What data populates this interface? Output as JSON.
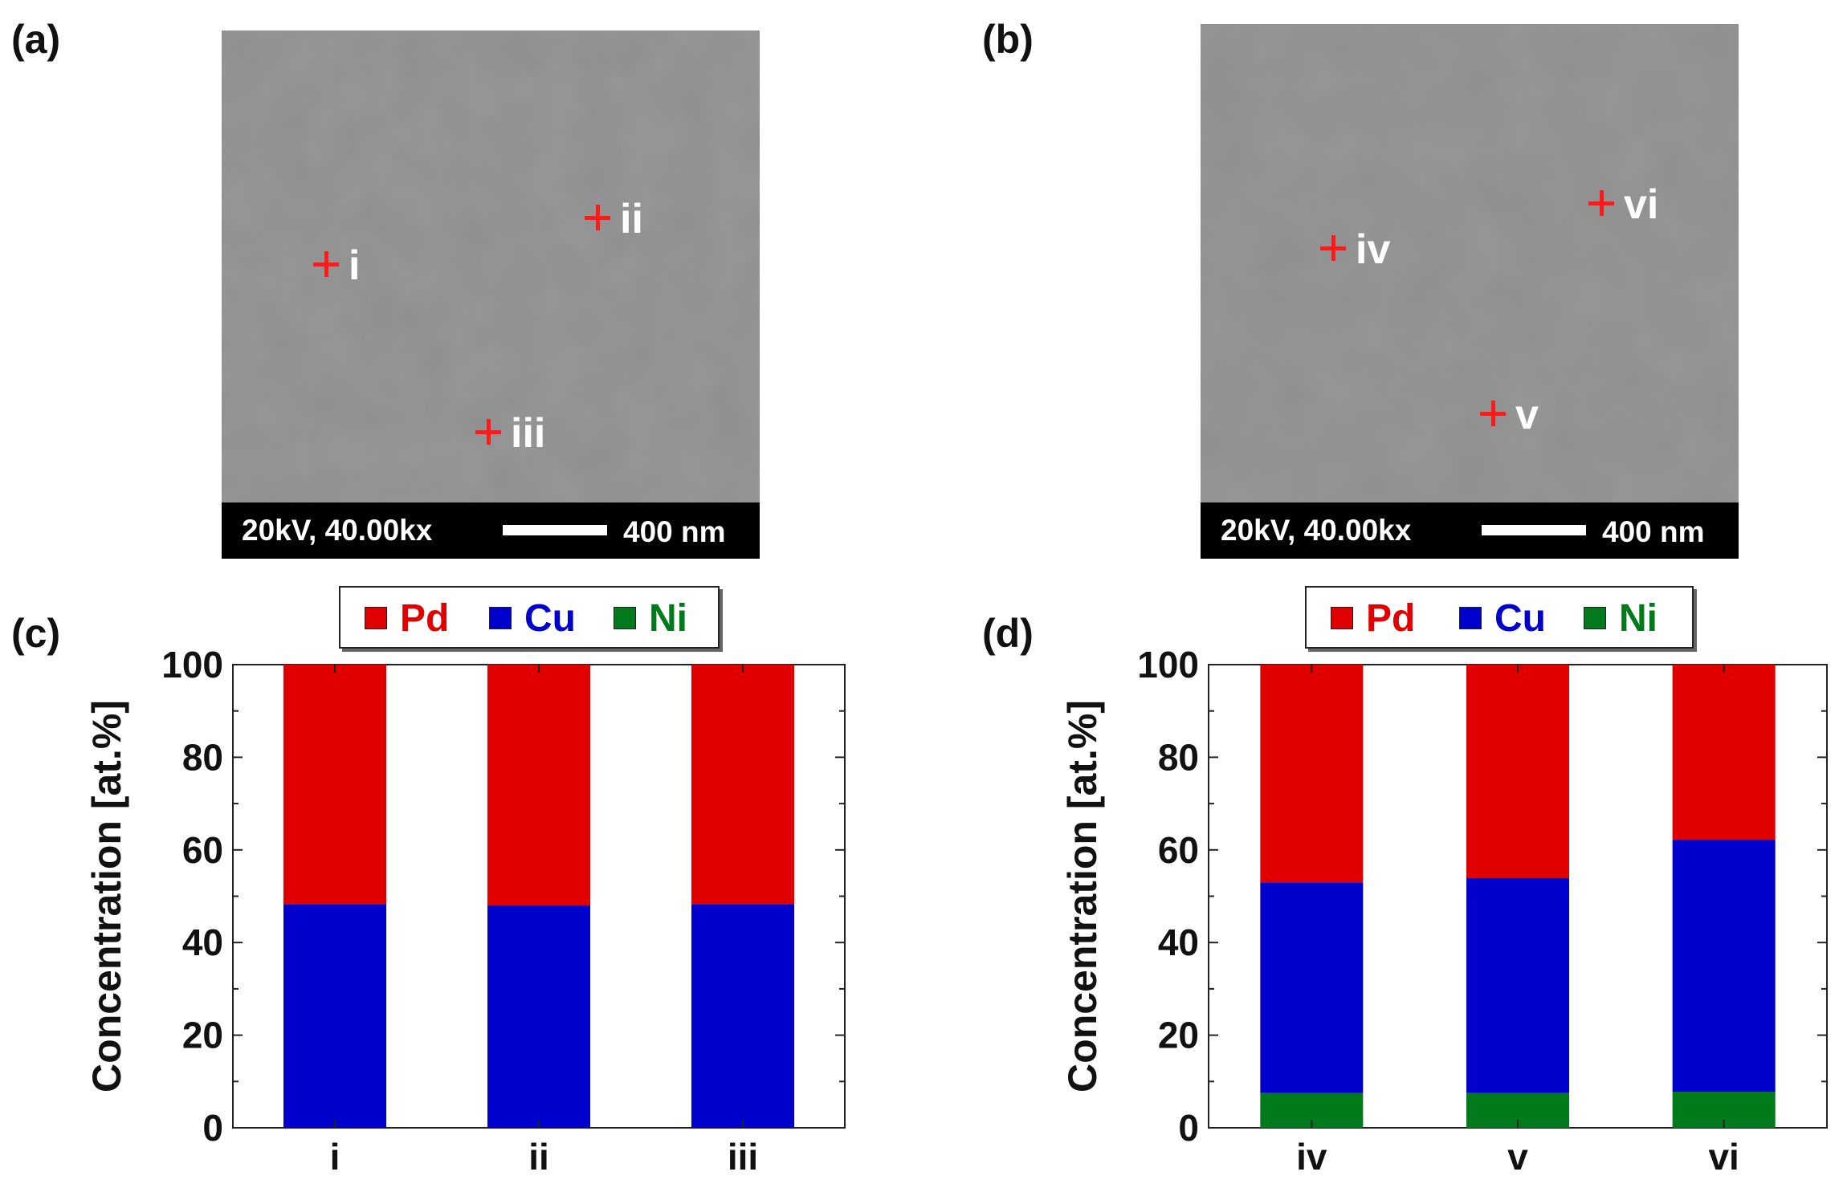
{
  "panels": {
    "a": {
      "label": "(a)",
      "sem_info": "20kV, 40.00kx",
      "scale_text": "400 nm",
      "markers": [
        "i",
        "ii",
        "iii"
      ]
    },
    "b": {
      "label": "(b)",
      "sem_info": "20kV, 40.00kx",
      "scale_text": "400 nm",
      "markers": [
        "iv",
        "vi",
        "v"
      ]
    },
    "c": {
      "label": "(c)"
    },
    "d": {
      "label": "(d)"
    }
  },
  "legend": {
    "items": [
      {
        "label": "Pd",
        "color": "#e00000"
      },
      {
        "label": "Cu",
        "color": "#0000cc"
      },
      {
        "label": "Ni",
        "color": "#007a1a"
      }
    ]
  },
  "chart_data": [
    {
      "type": "bar",
      "stacked": true,
      "panel": "(c)",
      "categories": [
        "i",
        "ii",
        "iii"
      ],
      "series": [
        {
          "name": "Ni",
          "color": "#007a1a",
          "values": [
            0,
            0,
            0
          ]
        },
        {
          "name": "Cu",
          "color": "#0000cc",
          "values": [
            48.3,
            48,
            48.3
          ]
        },
        {
          "name": "Pd",
          "color": "#e00000",
          "values": [
            51.7,
            52,
            51.7
          ]
        }
      ],
      "ylabel": "Concentration [at.%]",
      "xlabel": "",
      "ylim": [
        0,
        100
      ],
      "yticks": [
        0,
        20,
        40,
        60,
        80,
        100
      ],
      "legend": "top"
    },
    {
      "type": "bar",
      "stacked": true,
      "panel": "(d)",
      "categories": [
        "iv",
        "v",
        "vi"
      ],
      "series": [
        {
          "name": "Ni",
          "color": "#007a1a",
          "values": [
            7.5,
            7.5,
            7.8
          ]
        },
        {
          "name": "Cu",
          "color": "#0000cc",
          "values": [
            45.5,
            46.4,
            54.4
          ]
        },
        {
          "name": "Pd",
          "color": "#e00000",
          "values": [
            47,
            46.1,
            37.8
          ]
        }
      ],
      "ylabel": "Concentration [at.%]",
      "xlabel": "",
      "ylim": [
        0,
        100
      ],
      "yticks": [
        0,
        20,
        40,
        60,
        80,
        100
      ],
      "legend": "top"
    }
  ]
}
